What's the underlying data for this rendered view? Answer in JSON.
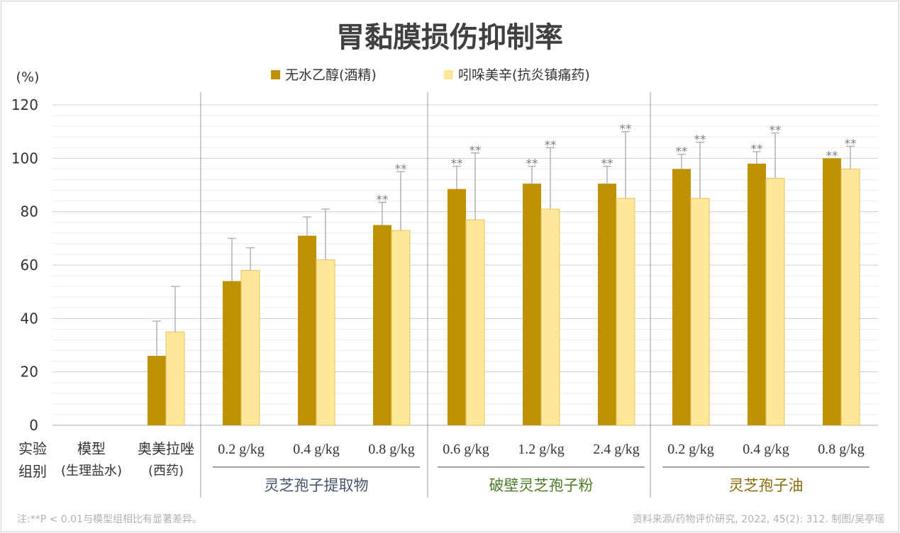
{
  "chart_data": {
    "type": "bar",
    "title": "胃黏膜损伤抑制率",
    "ylabel": "(%)",
    "ylim": [
      0,
      120
    ],
    "yticks": [
      0,
      20,
      40,
      60,
      80,
      100,
      120
    ],
    "minor_grid_step": 4,
    "grid": true,
    "legend_position": "top",
    "row_label": [
      "实验",
      "组别"
    ],
    "categories": [
      {
        "line1": "模型",
        "line2": "(生理盐水)"
      },
      {
        "line1": "奥美拉唑",
        "line2": "(西药)"
      },
      {
        "line1": "0.2 g/kg"
      },
      {
        "line1": "0.4 g/kg"
      },
      {
        "line1": "0.8 g/kg"
      },
      {
        "line1": "0.6 g/kg"
      },
      {
        "line1": "1.2 g/kg"
      },
      {
        "line1": "2.4 g/kg"
      },
      {
        "line1": "0.2 g/kg"
      },
      {
        "line1": "0.4 g/kg"
      },
      {
        "line1": "0.8 g/kg"
      }
    ],
    "groups": [
      {
        "label": "灵芝孢子提取物",
        "from": 2,
        "to": 4,
        "color": "#44546a"
      },
      {
        "label": "破壁灵芝孢子粉",
        "from": 5,
        "to": 7,
        "color": "#4f7a28"
      },
      {
        "label": "灵芝孢子油",
        "from": 8,
        "to": 10,
        "color": "#8a6d0b"
      }
    ],
    "series": [
      {
        "name": "无水乙醇(酒精)",
        "color": "#bf9000",
        "values": [
          null,
          26,
          54,
          71,
          75,
          88.5,
          90.5,
          90.5,
          96,
          98,
          100
        ],
        "error_top": [
          null,
          39,
          70,
          78,
          83.5,
          97,
          97,
          97,
          101.5,
          102.5,
          100
        ],
        "significance": [
          null,
          "",
          "",
          "",
          "**",
          "**",
          "**",
          "**",
          "**",
          "**",
          "**"
        ]
      },
      {
        "name": "吲哚美辛(抗炎镇痛药)",
        "color": "#ffe699",
        "values": [
          null,
          35,
          58,
          62,
          73,
          77,
          81,
          85,
          85,
          92.5,
          96
        ],
        "error_top": [
          null,
          52,
          66.5,
          81,
          95,
          102,
          104,
          110,
          106,
          109.5,
          104.5
        ],
        "significance": [
          null,
          "",
          "",
          "",
          "**",
          "**",
          "**",
          "**",
          "**",
          "**",
          "**"
        ]
      }
    ],
    "footnote_left": "注:**P < 0.01与模型组相比有显著差异。",
    "footnote_right": "资料来源/药物评价研究, 2022, 45(2): 312.   制图/吴亭瑶"
  }
}
